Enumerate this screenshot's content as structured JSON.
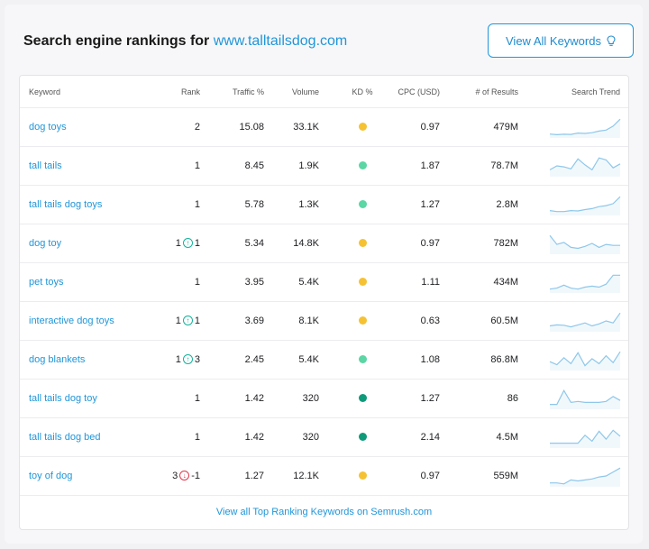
{
  "header": {
    "title_prefix": "Search engine rankings for",
    "domain": "www.talltailsdog.com",
    "view_all_button": "View All Keywords"
  },
  "columns": {
    "keyword": "Keyword",
    "rank": "Rank",
    "traffic": "Traffic %",
    "volume": "Volume",
    "kd": "KD %",
    "cpc": "CPC (USD)",
    "results": "# of Results",
    "trend": "Search Trend"
  },
  "kd_colors": {
    "yellow": "#f5c233",
    "light_green": "#5bd6a4",
    "dark_green": "#0f9a79"
  },
  "trend_color": "#8ec7ea",
  "rows": [
    {
      "keyword": "dog toys",
      "rank": "2",
      "change_dir": "",
      "change": "",
      "traffic": "15.08",
      "volume": "33.1K",
      "kd": "yellow",
      "cpc": "0.97",
      "results": "479M",
      "trend": [
        0.15,
        0.12,
        0.14,
        0.13,
        0.2,
        0.18,
        0.22,
        0.3,
        0.35,
        0.55,
        0.9
      ]
    },
    {
      "keyword": "tall tails",
      "rank": "1",
      "change_dir": "",
      "change": "",
      "traffic": "8.45",
      "volume": "1.9K",
      "kd": "light_green",
      "cpc": "1.87",
      "results": "78.7M",
      "trend": [
        0.3,
        0.5,
        0.45,
        0.35,
        0.85,
        0.55,
        0.3,
        0.9,
        0.8,
        0.4,
        0.6
      ]
    },
    {
      "keyword": "tall tails dog toys",
      "rank": "1",
      "change_dir": "",
      "change": "",
      "traffic": "5.78",
      "volume": "1.3K",
      "kd": "light_green",
      "cpc": "1.27",
      "results": "2.8M",
      "trend": [
        0.2,
        0.15,
        0.15,
        0.2,
        0.18,
        0.25,
        0.3,
        0.4,
        0.45,
        0.55,
        0.9
      ]
    },
    {
      "keyword": "dog toy",
      "rank": "1",
      "change_dir": "up",
      "change": "1",
      "traffic": "5.34",
      "volume": "14.8K",
      "kd": "yellow",
      "cpc": "0.97",
      "results": "782M",
      "trend": [
        0.9,
        0.45,
        0.55,
        0.3,
        0.25,
        0.35,
        0.5,
        0.3,
        0.45,
        0.4,
        0.4
      ]
    },
    {
      "keyword": "pet toys",
      "rank": "1",
      "change_dir": "",
      "change": "",
      "traffic": "3.95",
      "volume": "5.4K",
      "kd": "yellow",
      "cpc": "1.11",
      "results": "434M",
      "trend": [
        0.15,
        0.2,
        0.35,
        0.2,
        0.15,
        0.25,
        0.3,
        0.25,
        0.4,
        0.85,
        0.85
      ]
    },
    {
      "keyword": "interactive dog toys",
      "rank": "1",
      "change_dir": "up",
      "change": "1",
      "traffic": "3.69",
      "volume": "8.1K",
      "kd": "yellow",
      "cpc": "0.63",
      "results": "60.5M",
      "trend": [
        0.25,
        0.3,
        0.28,
        0.2,
        0.3,
        0.4,
        0.25,
        0.35,
        0.5,
        0.4,
        0.9
      ]
    },
    {
      "keyword": "dog blankets",
      "rank": "1",
      "change_dir": "up",
      "change": "3",
      "traffic": "2.45",
      "volume": "5.4K",
      "kd": "light_green",
      "cpc": "1.08",
      "results": "86.8M",
      "trend": [
        0.4,
        0.25,
        0.6,
        0.3,
        0.85,
        0.2,
        0.55,
        0.3,
        0.7,
        0.35,
        0.9
      ]
    },
    {
      "keyword": "tall tails dog toy",
      "rank": "1",
      "change_dir": "",
      "change": "",
      "traffic": "1.42",
      "volume": "320",
      "kd": "dark_green",
      "cpc": "1.27",
      "results": "86",
      "trend": [
        0.2,
        0.2,
        0.9,
        0.3,
        0.35,
        0.3,
        0.3,
        0.3,
        0.35,
        0.6,
        0.4
      ]
    },
    {
      "keyword": "tall tails dog bed",
      "rank": "1",
      "change_dir": "",
      "change": "",
      "traffic": "1.42",
      "volume": "320",
      "kd": "dark_green",
      "cpc": "2.14",
      "results": "4.5M",
      "trend": [
        0.2,
        0.2,
        0.2,
        0.2,
        0.2,
        0.6,
        0.3,
        0.8,
        0.4,
        0.85,
        0.55
      ]
    },
    {
      "keyword": "toy of dog",
      "rank": "3",
      "change_dir": "down",
      "change": "-1",
      "traffic": "1.27",
      "volume": "12.1K",
      "kd": "yellow",
      "cpc": "0.97",
      "results": "559M",
      "trend": [
        0.15,
        0.15,
        0.1,
        0.3,
        0.25,
        0.3,
        0.35,
        0.45,
        0.5,
        0.7,
        0.9
      ]
    }
  ],
  "footer_link": "View all Top Ranking Keywords on Semrush.com"
}
